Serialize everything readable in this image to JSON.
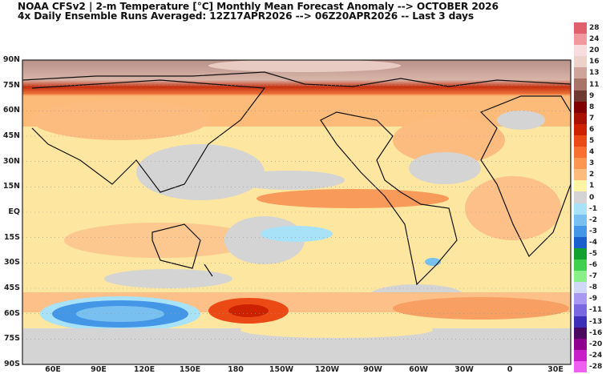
{
  "header": {
    "title_line1": "NOAA CFSv2 | 2-m Temperature [°C] Monthly Mean Forecast Anomaly --> OCTOBER 2026",
    "title_line2": "4x Daily Ensemble Runs Averaged: 12Z17APR2026 --> 06Z20APR2026 -- Last 3 days"
  },
  "map": {
    "lat_labels": [
      "90N",
      "75N",
      "60N",
      "45N",
      "30N",
      "15N",
      "EQ",
      "15S",
      "30S",
      "45S",
      "60S",
      "75S",
      "90S"
    ],
    "lon_labels": [
      "60E",
      "90E",
      "120E",
      "150E",
      "180",
      "150W",
      "120W",
      "90W",
      "60W",
      "30W",
      "0",
      "30E"
    ]
  },
  "colorbar": {
    "levels": [
      {
        "label": "28",
        "color": "#e0606c"
      },
      {
        "label": "24",
        "color": "#f09aa0"
      },
      {
        "label": "20",
        "color": "#f8dde0"
      },
      {
        "label": "16",
        "color": "#ecd2c8"
      },
      {
        "label": "13",
        "color": "#cfa49a"
      },
      {
        "label": "11",
        "color": "#a87468"
      },
      {
        "label": "9",
        "color": "#6e3a30"
      },
      {
        "label": "8",
        "color": "#800000"
      },
      {
        "label": "7",
        "color": "#a81000"
      },
      {
        "label": "6",
        "color": "#cc2200"
      },
      {
        "label": "5",
        "color": "#ec4a14"
      },
      {
        "label": "4",
        "color": "#f87030"
      },
      {
        "label": "3",
        "color": "#fc9650"
      },
      {
        "label": "2",
        "color": "#fdbc7c"
      },
      {
        "label": "1",
        "color": "#fff3a4"
      },
      {
        "label": "0",
        "color": "#d4d4d4"
      },
      {
        "label": "-1",
        "color": "#a8e2f8"
      },
      {
        "label": "-2",
        "color": "#78c0f0"
      },
      {
        "label": "-3",
        "color": "#4496e6"
      },
      {
        "label": "-4",
        "color": "#1a60cc"
      },
      {
        "label": "-5",
        "color": "#12a030"
      },
      {
        "label": "-6",
        "color": "#40d050"
      },
      {
        "label": "-7",
        "color": "#88f088"
      },
      {
        "label": "-8",
        "color": "#d0d8f8"
      },
      {
        "label": "-9",
        "color": "#a898f0"
      },
      {
        "label": "-11",
        "color": "#7a68e0"
      },
      {
        "label": "-13",
        "color": "#3c30b8"
      },
      {
        "label": "-16",
        "color": "#4a0860"
      },
      {
        "label": "-20",
        "color": "#900090"
      },
      {
        "label": "-24",
        "color": "#c820c8"
      },
      {
        "label": "-28",
        "color": "#f060f0"
      }
    ]
  }
}
